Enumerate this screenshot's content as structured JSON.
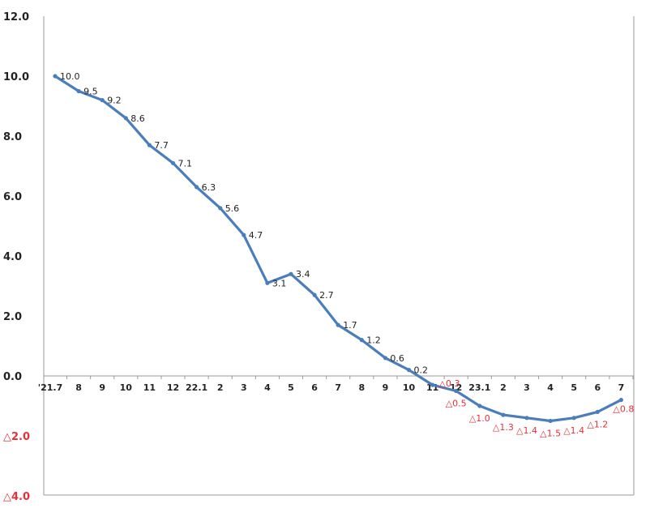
{
  "chart_data": {
    "type": "line",
    "title": "",
    "xlabel": "",
    "ylabel": "",
    "ylim": [
      -4.0,
      12.0
    ],
    "yticks": [
      12.0,
      10.0,
      8.0,
      6.0,
      4.0,
      2.0,
      0.0,
      -2.0,
      -4.0
    ],
    "ytick_labels": [
      "12.0",
      "10.0",
      "8.0",
      "6.0",
      "4.0",
      "2.0",
      "0.0",
      "△2.0",
      "△4.0"
    ],
    "categories": [
      "'21.7",
      "8",
      "9",
      "10",
      "11",
      "12",
      "22.1",
      "2",
      "3",
      "4",
      "5",
      "6",
      "7",
      "8",
      "9",
      "10",
      "11",
      "12",
      "23.1",
      "2",
      "3",
      "4",
      "5",
      "6",
      "7"
    ],
    "series": [
      {
        "name": "",
        "color": "#4a7ebb",
        "values": [
          10.0,
          9.5,
          9.2,
          8.6,
          7.7,
          7.1,
          6.3,
          5.6,
          4.7,
          3.1,
          3.4,
          2.7,
          1.7,
          1.2,
          0.6,
          0.2,
          -0.3,
          -0.5,
          -1.0,
          -1.3,
          -1.4,
          -1.5,
          -1.4,
          -1.2,
          -0.8
        ],
        "data_labels": [
          "10.0",
          "9.5",
          "9.2",
          "8.6",
          "7.7",
          "7.1",
          "6.3",
          "5.6",
          "4.7",
          "3.1",
          "3.4",
          "2.7",
          "1.7",
          "1.2",
          "0.6",
          "0.2",
          "△0.3",
          "△0.5",
          "△1.0",
          "△1.3",
          "△1.4",
          "△1.5",
          "△1.4",
          "△1.2",
          "△0.8"
        ]
      }
    ],
    "grid": false,
    "negative_color": "#e8303a",
    "axis_color": "#999999"
  }
}
